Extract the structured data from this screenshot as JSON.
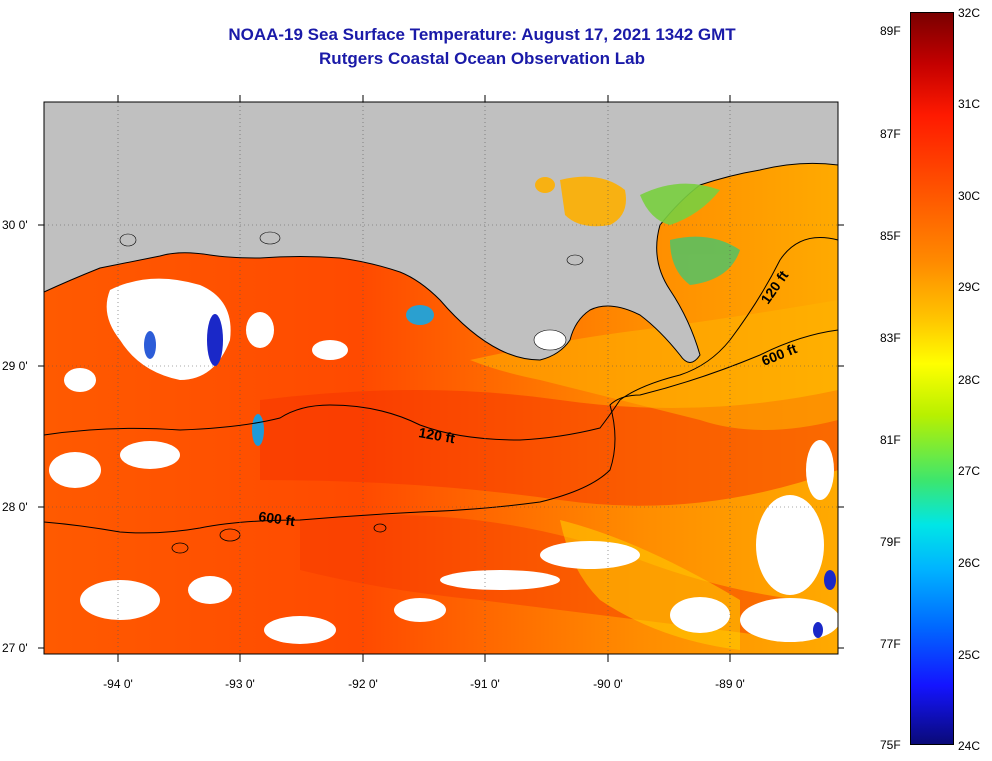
{
  "title": "NOAA-19 Sea Surface Temperature:  August 17, 2021 1342 GMT",
  "subtitle": "Rutgers Coastal Ocean Observation Lab",
  "lat_labels": [
    "30 0'",
    "29 0'",
    "28 0'",
    "27 0'"
  ],
  "lon_labels": [
    "-94 0'",
    "-93 0'",
    "-92 0'",
    "-91 0'",
    "-90 0'",
    "-89 0'"
  ],
  "contour_labels": {
    "c120_a": "120 ft",
    "c120_b": "120 ft",
    "c600_a": "600 ft",
    "c600_b": "600 ft"
  },
  "colorbar": {
    "fahrenheit": [
      "89F",
      "87F",
      "85F",
      "83F",
      "81F",
      "79F",
      "77F",
      "75F"
    ],
    "celsius": [
      "32C",
      "31C",
      "30C",
      "29C",
      "28C",
      "27C",
      "26C",
      "25C",
      "24C"
    ]
  },
  "colors": {
    "title": "#1a1aa8",
    "land": "#c0c0c0",
    "sea_warm": "#ff6a00",
    "cloud": "#ffffff"
  }
}
